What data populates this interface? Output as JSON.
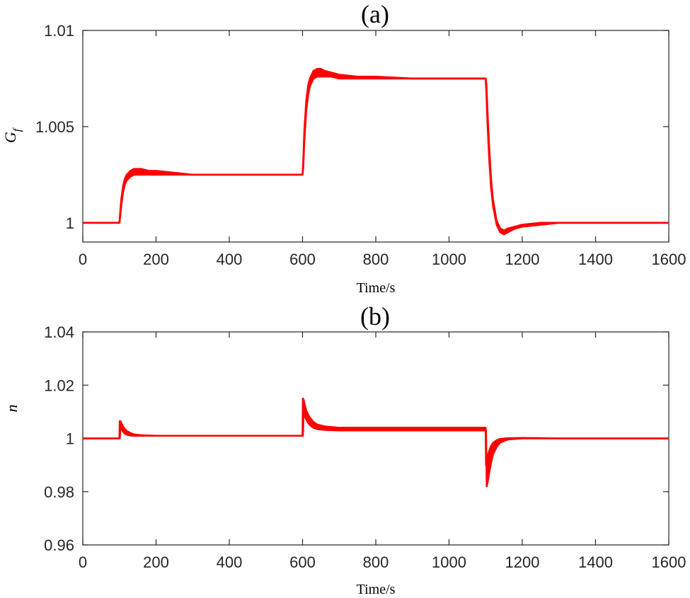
{
  "chart_data": [
    {
      "type": "line",
      "panel": "(a)",
      "title": "(a)",
      "xlabel": "Time/s",
      "ylabel": "G",
      "ylabel_subscript": "f",
      "xlim": [
        0,
        1600
      ],
      "ylim": [
        0.999,
        1.01
      ],
      "xticks": [
        0,
        200,
        400,
        600,
        800,
        1000,
        1200,
        1400,
        1600
      ],
      "yticks": [
        1,
        1.005,
        1.01
      ],
      "ytick_labels": [
        "1",
        "1.005",
        "1.01"
      ],
      "series_color": "#ff0000",
      "series": [
        {
          "name": "Gf upper envelope",
          "x": [
            0,
            100,
            102,
            105,
            110,
            115,
            120,
            130,
            140,
            150,
            160,
            180,
            200,
            250,
            300,
            400,
            500,
            600,
            602,
            605,
            610,
            615,
            620,
            630,
            640,
            650,
            660,
            680,
            700,
            750,
            800,
            900,
            1000,
            1100,
            1102,
            1105,
            1110,
            1115,
            1120,
            1130,
            1140,
            1150,
            1160,
            1180,
            1200,
            1250,
            1300,
            1400,
            1500,
            1600
          ],
          "y": [
            1.0,
            1.0,
            1.0005,
            1.0012,
            1.0019,
            1.0023,
            1.0025,
            1.0027,
            1.0028,
            1.0028,
            1.0028,
            1.0027,
            1.0027,
            1.0026,
            1.0025,
            1.0025,
            1.0025,
            1.0025,
            1.0032,
            1.0048,
            1.0063,
            1.0071,
            1.0075,
            1.0079,
            1.008,
            1.008,
            1.0079,
            1.0078,
            1.0077,
            1.0076,
            1.0076,
            1.0075,
            1.0075,
            1.0075,
            1.0068,
            1.0052,
            1.0032,
            1.0018,
            1.0009,
            0.9999,
            0.9995,
            0.9994,
            0.9995,
            0.9997,
            0.9998,
            0.9999,
            1.0,
            1.0,
            1.0,
            1.0
          ]
        },
        {
          "name": "Gf lower envelope",
          "x": [
            0,
            100,
            102,
            105,
            110,
            115,
            120,
            130,
            140,
            150,
            160,
            180,
            200,
            250,
            300,
            400,
            500,
            600,
            602,
            605,
            610,
            615,
            620,
            630,
            640,
            650,
            660,
            680,
            700,
            750,
            800,
            900,
            1000,
            1100,
            1102,
            1105,
            1110,
            1115,
            1120,
            1130,
            1140,
            1150,
            1160,
            1180,
            1200,
            1250,
            1300,
            1400,
            1500,
            1600
          ],
          "y": [
            1.0,
            1.0,
            1.0003,
            1.0009,
            1.0016,
            1.002,
            1.0022,
            1.0024,
            1.0025,
            1.0025,
            1.0025,
            1.0025,
            1.0025,
            1.0025,
            1.0025,
            1.0025,
            1.0025,
            1.0025,
            1.0029,
            1.0043,
            1.0058,
            1.0066,
            1.0071,
            1.0075,
            1.0076,
            1.0076,
            1.0076,
            1.0076,
            1.0075,
            1.0075,
            1.0075,
            1.0075,
            1.0075,
            1.0075,
            1.0072,
            1.0058,
            1.0038,
            1.0022,
            1.0012,
            1.0001,
            0.9997,
            0.9996,
            0.9997,
            0.9998,
            0.9999,
            1.0,
            1.0,
            1.0,
            1.0,
            1.0
          ]
        }
      ]
    },
    {
      "type": "line",
      "panel": "(b)",
      "title": "(b)",
      "xlabel": "Time/s",
      "ylabel": "n",
      "xlim": [
        0,
        1600
      ],
      "ylim": [
        0.96,
        1.04
      ],
      "xticks": [
        0,
        200,
        400,
        600,
        800,
        1000,
        1200,
        1400,
        1600
      ],
      "yticks": [
        0.96,
        0.98,
        1,
        1.02,
        1.04
      ],
      "ytick_labels": [
        "0.96",
        "0.98",
        "1",
        "1.02",
        "1.04"
      ],
      "series_color": "#ff0000",
      "series": [
        {
          "name": "n upper envelope",
          "x": [
            0,
            99,
            100,
            101,
            103,
            106,
            110,
            115,
            120,
            130,
            140,
            160,
            200,
            300,
            400,
            500,
            599,
            600,
            601,
            603,
            606,
            610,
            615,
            620,
            630,
            640,
            660,
            700,
            800,
            900,
            1000,
            1099,
            1100,
            1101,
            1103,
            1106,
            1110,
            1115,
            1120,
            1130,
            1140,
            1160,
            1200,
            1300,
            1400,
            1600
          ],
          "y": [
            1.0,
            1.0,
            1.0,
            1.0065,
            1.0065,
            1.0055,
            1.0045,
            1.0035,
            1.0028,
            1.002,
            1.0015,
            1.0012,
            1.001,
            1.001,
            1.001,
            1.001,
            1.001,
            1.001,
            1.015,
            1.0145,
            1.0125,
            1.0105,
            1.009,
            1.0078,
            1.0062,
            1.0052,
            1.0045,
            1.004,
            1.004,
            1.004,
            1.004,
            1.004,
            1.004,
            0.99,
            0.991,
            0.9935,
            0.9955,
            0.9972,
            0.9983,
            0.9993,
            0.9998,
            1.0001,
            1.0002,
            1.0,
            1.0,
            1.0
          ]
        },
        {
          "name": "n lower envelope",
          "x": [
            0,
            99,
            100,
            101,
            103,
            106,
            110,
            115,
            120,
            130,
            140,
            160,
            200,
            300,
            400,
            500,
            599,
            600,
            601,
            603,
            606,
            610,
            615,
            620,
            630,
            640,
            660,
            700,
            800,
            900,
            1000,
            1099,
            1100,
            1101,
            1103,
            1106,
            1110,
            1115,
            1120,
            1130,
            1140,
            1160,
            1200,
            1300,
            1400,
            1600
          ],
          "y": [
            1.0,
            1.0,
            1.0,
            1.0,
            1.0045,
            1.0035,
            1.0025,
            1.0018,
            1.0014,
            1.0011,
            1.001,
            1.001,
            1.001,
            1.001,
            1.001,
            1.001,
            1.001,
            1.001,
            1.001,
            1.0095,
            1.0085,
            1.0072,
            1.006,
            1.005,
            1.004,
            1.0035,
            1.0032,
            1.003,
            1.003,
            1.003,
            1.003,
            1.003,
            1.003,
            1.003,
            0.982,
            0.984,
            0.9875,
            0.991,
            0.994,
            0.9968,
            0.9985,
            0.9996,
            1.0,
            1.0,
            1.0,
            1.0
          ]
        }
      ]
    }
  ]
}
